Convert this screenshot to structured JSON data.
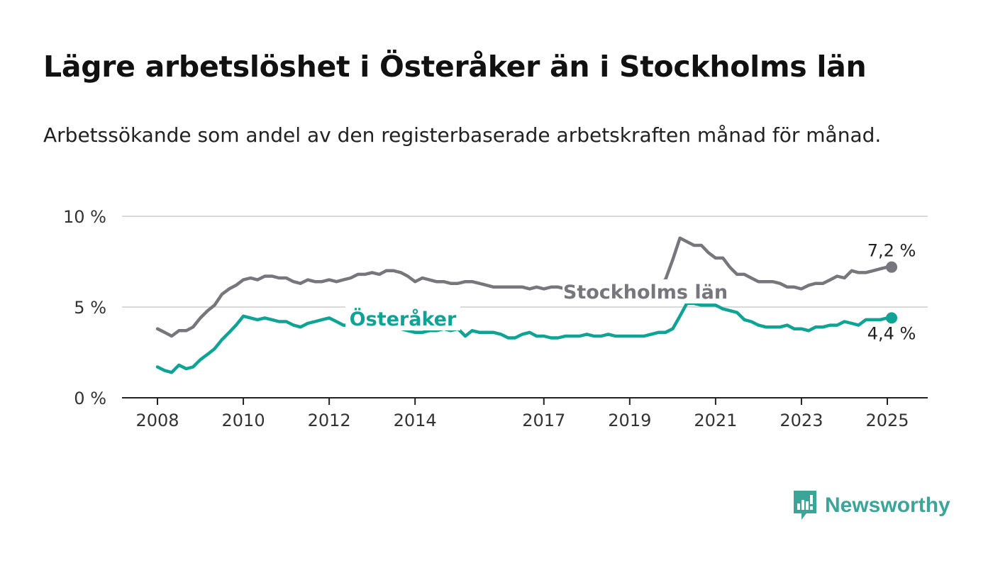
{
  "title": "Lägre arbetslöshet i Österåker än i Stockholms län",
  "subtitle": "Arbetssökande som andel av den registerbaserade arbetskraften månad för månad.",
  "brand": {
    "name": "Newsworthy",
    "icon": "newsworthy-logo-icon",
    "color": "#3aa598"
  },
  "chart_data": {
    "type": "line",
    "title": "Lägre arbetslöshet i Österåker än i Stockholms län",
    "xlabel": "",
    "ylabel": "",
    "ylim": [
      0,
      10
    ],
    "xlim": [
      2008,
      2025.5
    ],
    "grid": true,
    "y_ticks": [
      0,
      5,
      10
    ],
    "y_tick_labels": [
      "0 %",
      "5 %",
      "10 %"
    ],
    "x_ticks": [
      2008,
      2010,
      2012,
      2014,
      2017,
      2019,
      2021,
      2023,
      2025
    ],
    "x_tick_labels": [
      "2008",
      "2010",
      "2012",
      "2014",
      "2017",
      "2019",
      "2021",
      "2023",
      "2025"
    ],
    "series": [
      {
        "name": "Stockholms län",
        "color": "#77767c",
        "end_label": "7,2 %",
        "x": [
          2008.0,
          2008.17,
          2008.33,
          2008.5,
          2008.67,
          2008.83,
          2009.0,
          2009.17,
          2009.33,
          2009.5,
          2009.67,
          2009.83,
          2010.0,
          2010.17,
          2010.33,
          2010.5,
          2010.67,
          2010.83,
          2011.0,
          2011.17,
          2011.33,
          2011.5,
          2011.67,
          2011.83,
          2012.0,
          2012.17,
          2012.33,
          2012.5,
          2012.67,
          2012.83,
          2013.0,
          2013.17,
          2013.33,
          2013.5,
          2013.67,
          2013.83,
          2014.0,
          2014.17,
          2014.33,
          2014.5,
          2014.67,
          2014.83,
          2015.0,
          2015.17,
          2015.33,
          2015.5,
          2015.67,
          2015.83,
          2016.0,
          2016.17,
          2016.33,
          2016.5,
          2016.67,
          2016.83,
          2017.0,
          2017.17,
          2017.33,
          2017.5,
          2017.67,
          2017.83,
          2018.0,
          2018.17,
          2018.33,
          2018.5,
          2018.67,
          2018.83,
          2019.0,
          2019.17,
          2019.33,
          2019.5,
          2019.67,
          2019.83,
          2020.0,
          2020.17,
          2020.33,
          2020.5,
          2020.67,
          2020.83,
          2021.0,
          2021.17,
          2021.33,
          2021.5,
          2021.67,
          2021.83,
          2022.0,
          2022.17,
          2022.33,
          2022.5,
          2022.67,
          2022.83,
          2023.0,
          2023.17,
          2023.33,
          2023.5,
          2023.67,
          2023.83,
          2024.0,
          2024.17,
          2024.33,
          2024.5,
          2024.67,
          2024.83,
          2025.0,
          2025.1
        ],
        "values": [
          3.8,
          3.6,
          3.4,
          3.7,
          3.7,
          3.9,
          4.4,
          4.8,
          5.1,
          5.7,
          6.0,
          6.2,
          6.5,
          6.6,
          6.5,
          6.7,
          6.7,
          6.6,
          6.6,
          6.4,
          6.3,
          6.5,
          6.4,
          6.4,
          6.5,
          6.4,
          6.5,
          6.6,
          6.8,
          6.8,
          6.9,
          6.8,
          7.0,
          7.0,
          6.9,
          6.7,
          6.4,
          6.6,
          6.5,
          6.4,
          6.4,
          6.3,
          6.3,
          6.4,
          6.4,
          6.3,
          6.2,
          6.1,
          6.1,
          6.1,
          6.1,
          6.1,
          6.0,
          6.1,
          6.0,
          6.1,
          6.1,
          6.0,
          6.0,
          6.0,
          6.0,
          6.1,
          6.1,
          6.1,
          6.1,
          6.0,
          6.1,
          6.1,
          6.1,
          6.2,
          6.3,
          6.5,
          7.6,
          8.8,
          8.6,
          8.4,
          8.4,
          8.0,
          7.7,
          7.7,
          7.2,
          6.8,
          6.8,
          6.6,
          6.4,
          6.4,
          6.4,
          6.3,
          6.1,
          6.1,
          6.0,
          6.2,
          6.3,
          6.3,
          6.5,
          6.7,
          6.6,
          7.0,
          6.9,
          6.9,
          7.0,
          7.1,
          7.2,
          7.2
        ]
      },
      {
        "name": "Österåker",
        "color": "#0fa396",
        "end_label": "4,4 %",
        "x": [
          2008.0,
          2008.17,
          2008.33,
          2008.5,
          2008.67,
          2008.83,
          2009.0,
          2009.17,
          2009.33,
          2009.5,
          2009.67,
          2009.83,
          2010.0,
          2010.17,
          2010.33,
          2010.5,
          2010.67,
          2010.83,
          2011.0,
          2011.17,
          2011.33,
          2011.5,
          2011.67,
          2011.83,
          2012.0,
          2012.17,
          2012.33,
          2012.5,
          2012.67,
          2012.83,
          2013.0,
          2013.17,
          2013.33,
          2013.5,
          2013.67,
          2013.83,
          2014.0,
          2014.17,
          2014.33,
          2014.5,
          2014.67,
          2014.83,
          2015.0,
          2015.17,
          2015.33,
          2015.5,
          2015.67,
          2015.83,
          2016.0,
          2016.17,
          2016.33,
          2016.5,
          2016.67,
          2016.83,
          2017.0,
          2017.17,
          2017.33,
          2017.5,
          2017.67,
          2017.83,
          2018.0,
          2018.17,
          2018.33,
          2018.5,
          2018.67,
          2018.83,
          2019.0,
          2019.17,
          2019.33,
          2019.5,
          2019.67,
          2019.83,
          2020.0,
          2020.17,
          2020.33,
          2020.5,
          2020.67,
          2020.83,
          2021.0,
          2021.17,
          2021.33,
          2021.5,
          2021.67,
          2021.83,
          2022.0,
          2022.17,
          2022.33,
          2022.5,
          2022.67,
          2022.83,
          2023.0,
          2023.17,
          2023.33,
          2023.5,
          2023.67,
          2023.83,
          2024.0,
          2024.17,
          2024.33,
          2024.5,
          2024.67,
          2024.83,
          2025.0,
          2025.1
        ],
        "values": [
          1.7,
          1.5,
          1.4,
          1.8,
          1.6,
          1.7,
          2.1,
          2.4,
          2.7,
          3.2,
          3.6,
          4.0,
          4.5,
          4.4,
          4.3,
          4.4,
          4.3,
          4.2,
          4.2,
          4.0,
          3.9,
          4.1,
          4.2,
          4.3,
          4.4,
          4.2,
          4.0,
          4.0,
          3.9,
          3.9,
          3.9,
          3.8,
          3.8,
          3.8,
          3.8,
          3.7,
          3.6,
          3.6,
          3.7,
          3.7,
          3.8,
          3.7,
          3.8,
          3.4,
          3.7,
          3.6,
          3.6,
          3.6,
          3.5,
          3.3,
          3.3,
          3.5,
          3.6,
          3.4,
          3.4,
          3.3,
          3.3,
          3.4,
          3.4,
          3.4,
          3.5,
          3.4,
          3.4,
          3.5,
          3.4,
          3.4,
          3.4,
          3.4,
          3.4,
          3.5,
          3.6,
          3.6,
          3.8,
          4.5,
          5.2,
          5.2,
          5.1,
          5.1,
          5.1,
          4.9,
          4.8,
          4.7,
          4.3,
          4.2,
          4.0,
          3.9,
          3.9,
          3.9,
          4.0,
          3.8,
          3.8,
          3.7,
          3.9,
          3.9,
          4.0,
          4.0,
          4.2,
          4.1,
          4.0,
          4.3,
          4.3,
          4.3,
          4.4,
          4.4
        ]
      }
    ],
    "annotations": [
      {
        "series": "Stockholms län",
        "label": "Stockholms län"
      },
      {
        "series": "Österåker",
        "label": "Österåker"
      }
    ]
  }
}
